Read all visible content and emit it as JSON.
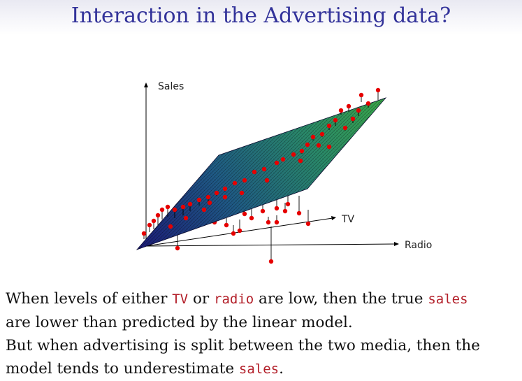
{
  "slide": {
    "title": "Interaction in the Advertising data?"
  },
  "chart_data": {
    "type": "scatter",
    "plot_kind": "3d-regression-plane",
    "axes": {
      "z": "Sales",
      "x": "TV",
      "y": "Radio"
    },
    "surface_colors": [
      "#1c1c78",
      "#1f5a86",
      "#2a8a6a",
      "#3aa84a"
    ],
    "point_color": "#e60000"
  },
  "caption": {
    "line1": {
      "text_a": "When levels of either ",
      "code_a": "TV",
      "text_b": " or ",
      "code_b": "radio",
      "text_c": " are low, then the true ",
      "code_c": "sales"
    },
    "line2": {
      "text_a": "are lower than predicted by the linear model."
    },
    "line3": {
      "text_a": "But when advertising is split between the two media, then the"
    },
    "line4": {
      "text_a": "model tends to underestimate ",
      "code_a": "sales",
      "text_b": "."
    }
  }
}
